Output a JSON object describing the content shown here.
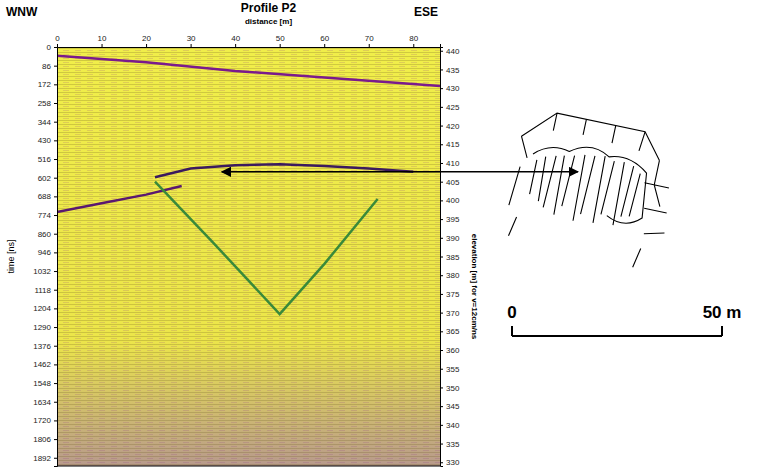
{
  "chart_data": {
    "type": "radargram",
    "title": "Profile P2",
    "x_label": "distance [m]",
    "y_label": "time [ns]",
    "y2_label": "elevation [m] for v=12cm/ns",
    "annotations": [
      "WNW",
      "ESE"
    ],
    "xlim": [
      0,
      86
    ],
    "xticks": [
      0,
      10,
      20,
      30,
      40,
      50,
      60,
      70,
      80
    ],
    "ylim": [
      0,
      1930
    ],
    "yticks": [
      0,
      86,
      172,
      258,
      344,
      430,
      516,
      602,
      688,
      774,
      860,
      946,
      1032,
      1118,
      1204,
      1290,
      1376,
      1462,
      1548,
      1634,
      1720,
      1806,
      1892
    ],
    "y2lim": [
      441,
      329
    ],
    "y2ticks": [
      440,
      435,
      430,
      425,
      420,
      415,
      410,
      405,
      400,
      395,
      390,
      385,
      380,
      375,
      370,
      365,
      360,
      355,
      350,
      345,
      340,
      335,
      330
    ],
    "series": [
      {
        "color": "#7a1a8c",
        "x": [
          0,
          20,
          40,
          60,
          86
        ],
        "values": [
          40,
          70,
          110,
          140,
          180
        ]
      },
      {
        "color": "#5a1870",
        "x": [
          0,
          10,
          20,
          28
        ],
        "values": [
          760,
          720,
          680,
          640
        ]
      },
      {
        "color": "#3b1a5e",
        "x": [
          22,
          30,
          40,
          50,
          60,
          70,
          80
        ],
        "values": [
          600,
          560,
          545,
          540,
          548,
          560,
          575
        ]
      },
      {
        "color": "#3a8a3a",
        "x": [
          22,
          35,
          50,
          60,
          72
        ],
        "values": [
          620,
          900,
          1230,
          1000,
          700
        ]
      }
    ],
    "arrow_from": {
      "x": 37,
      "y": 575
    },
    "scale_bar": {
      "ticks": [
        0,
        {
          "value": 50,
          "label": "50 m"
        }
      ]
    }
  }
}
